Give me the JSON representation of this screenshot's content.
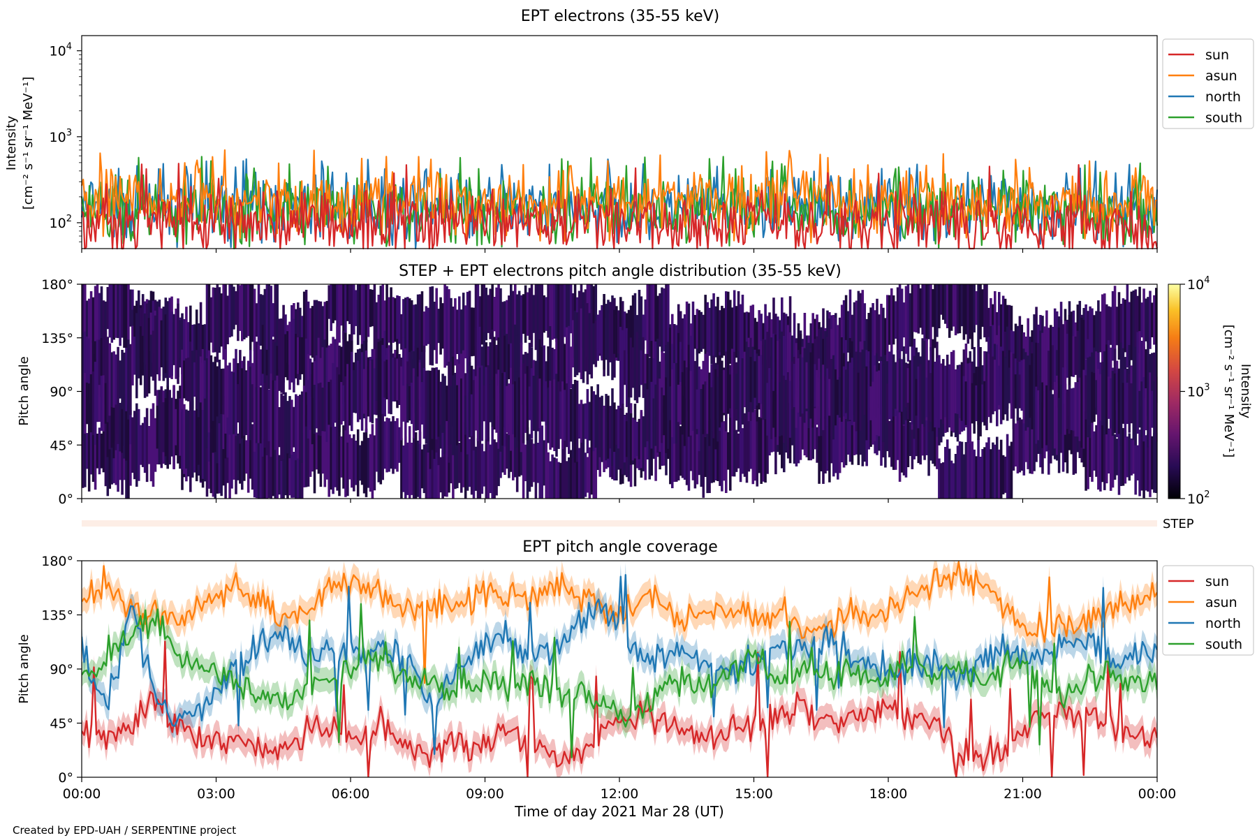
{
  "figure": {
    "footer_credit": "Created by EPD-UAH / SERPENTINE project",
    "xlabel": "Time of day 2021 Mar 28 (UT)",
    "x_ticks": [
      "00:00",
      "03:00",
      "06:00",
      "09:00",
      "12:00",
      "15:00",
      "18:00",
      "21:00",
      "00:00"
    ],
    "channel_colors": {
      "sun": "#d62728",
      "asun": "#ff7f0e",
      "north": "#1f77b4",
      "south": "#2ca02c"
    }
  },
  "chart_data": [
    {
      "type": "line",
      "title": "EPT electrons (35-55 keV)",
      "ylabel_line1": "Intensity",
      "ylabel_line2": "[cm⁻² s⁻¹ sr⁻¹ MeV⁻¹]",
      "yscale": "log",
      "ylim": [
        50,
        15000
      ],
      "y_ticks": [
        {
          "value": 100,
          "base": "10",
          "exp": "2"
        },
        {
          "value": 1000,
          "base": "10",
          "exp": "3"
        },
        {
          "value": 10000,
          "base": "10",
          "exp": "4"
        }
      ],
      "x_range_hours": [
        0,
        24
      ],
      "legend": [
        "sun",
        "asun",
        "north",
        "south"
      ],
      "legend_position": "outside-right-top",
      "series_level_estimate": [
        {
          "name": "sun",
          "median": 100,
          "max": 500
        },
        {
          "name": "asun",
          "median": 180,
          "max": 700
        },
        {
          "name": "north",
          "median": 150,
          "max": 550
        },
        {
          "name": "south",
          "median": 140,
          "max": 600
        }
      ]
    },
    {
      "type": "heatmap",
      "title": "STEP + EPT electrons pitch angle distribution (35-55 keV)",
      "ylabel": "Pitch angle",
      "y_ticks": [
        "0°",
        "45°",
        "90°",
        "135°",
        "180°"
      ],
      "ylim": [
        0,
        180
      ],
      "colorbar_label": "Intensity",
      "colorbar_units": "[cm⁻² s⁻¹ sr⁻¹ MeV⁻¹]",
      "colorbar_scale": "log",
      "colorbar_range": [
        100,
        10000
      ],
      "colorbar_ticks": [
        {
          "base": "10",
          "exp": "4"
        },
        {
          "base": "10",
          "exp": "3"
        },
        {
          "base": "10",
          "exp": "2"
        }
      ],
      "colormap": "inferno",
      "value_estimate": "mostly 100-300 (dark purple)"
    },
    {
      "type": "bar",
      "ylabel": "STEP"
    },
    {
      "type": "line",
      "title": "EPT pitch angle coverage",
      "ylabel": "Pitch angle",
      "y_ticks": [
        "0°",
        "45°",
        "90°",
        "135°",
        "180°"
      ],
      "ylim": [
        0,
        180
      ],
      "legend": [
        "sun",
        "asun",
        "north",
        "south"
      ],
      "legend_position": "outside-right-top",
      "series": [
        {
          "name": "sun",
          "mean_deg": 35,
          "knots_deg": [
            40,
            30,
            45,
            60,
            40,
            30,
            35,
            25,
            20,
            40,
            35,
            30,
            45,
            25,
            20,
            30,
            25,
            40,
            30,
            15,
            20,
            45,
            45,
            50,
            40,
            35,
            40,
            45,
            55,
            60,
            45,
            55,
            60,
            50,
            55,
            15,
            15,
            20,
            45,
            55,
            55,
            40,
            35,
            30
          ]
        },
        {
          "name": "asun",
          "mean_deg": 150,
          "knots_deg": [
            150,
            160,
            140,
            135,
            130,
            150,
            160,
            150,
            130,
            140,
            165,
            160,
            150,
            140,
            145,
            140,
            155,
            150,
            155,
            160,
            150,
            135,
            140,
            150,
            130,
            140,
            140,
            130,
            135,
            120,
            125,
            140,
            135,
            150,
            160,
            170,
            160,
            140,
            120,
            125,
            130,
            140,
            145,
            150
          ]
        },
        {
          "name": "north",
          "mean_deg": 95,
          "knots_deg": [
            110,
            60,
            140,
            60,
            50,
            60,
            90,
            110,
            120,
            100,
            110,
            100,
            105,
            100,
            60,
            90,
            110,
            115,
            100,
            110,
            130,
            140,
            110,
            100,
            110,
            90,
            90,
            100,
            110,
            105,
            120,
            100,
            95,
            90,
            100,
            80,
            95,
            110,
            100,
            110,
            120,
            100,
            95,
            105
          ]
        },
        {
          "name": "south",
          "mean_deg": 85,
          "knots_deg": [
            80,
            100,
            120,
            130,
            100,
            90,
            80,
            70,
            60,
            75,
            80,
            90,
            100,
            80,
            80,
            70,
            80,
            75,
            80,
            70,
            65,
            60,
            50,
            70,
            80,
            75,
            90,
            100,
            75,
            95,
            85,
            90,
            80,
            95,
            85,
            90,
            80,
            95,
            90,
            70,
            75,
            85,
            80,
            75
          ]
        }
      ],
      "band_half_width_deg": 10
    }
  ]
}
